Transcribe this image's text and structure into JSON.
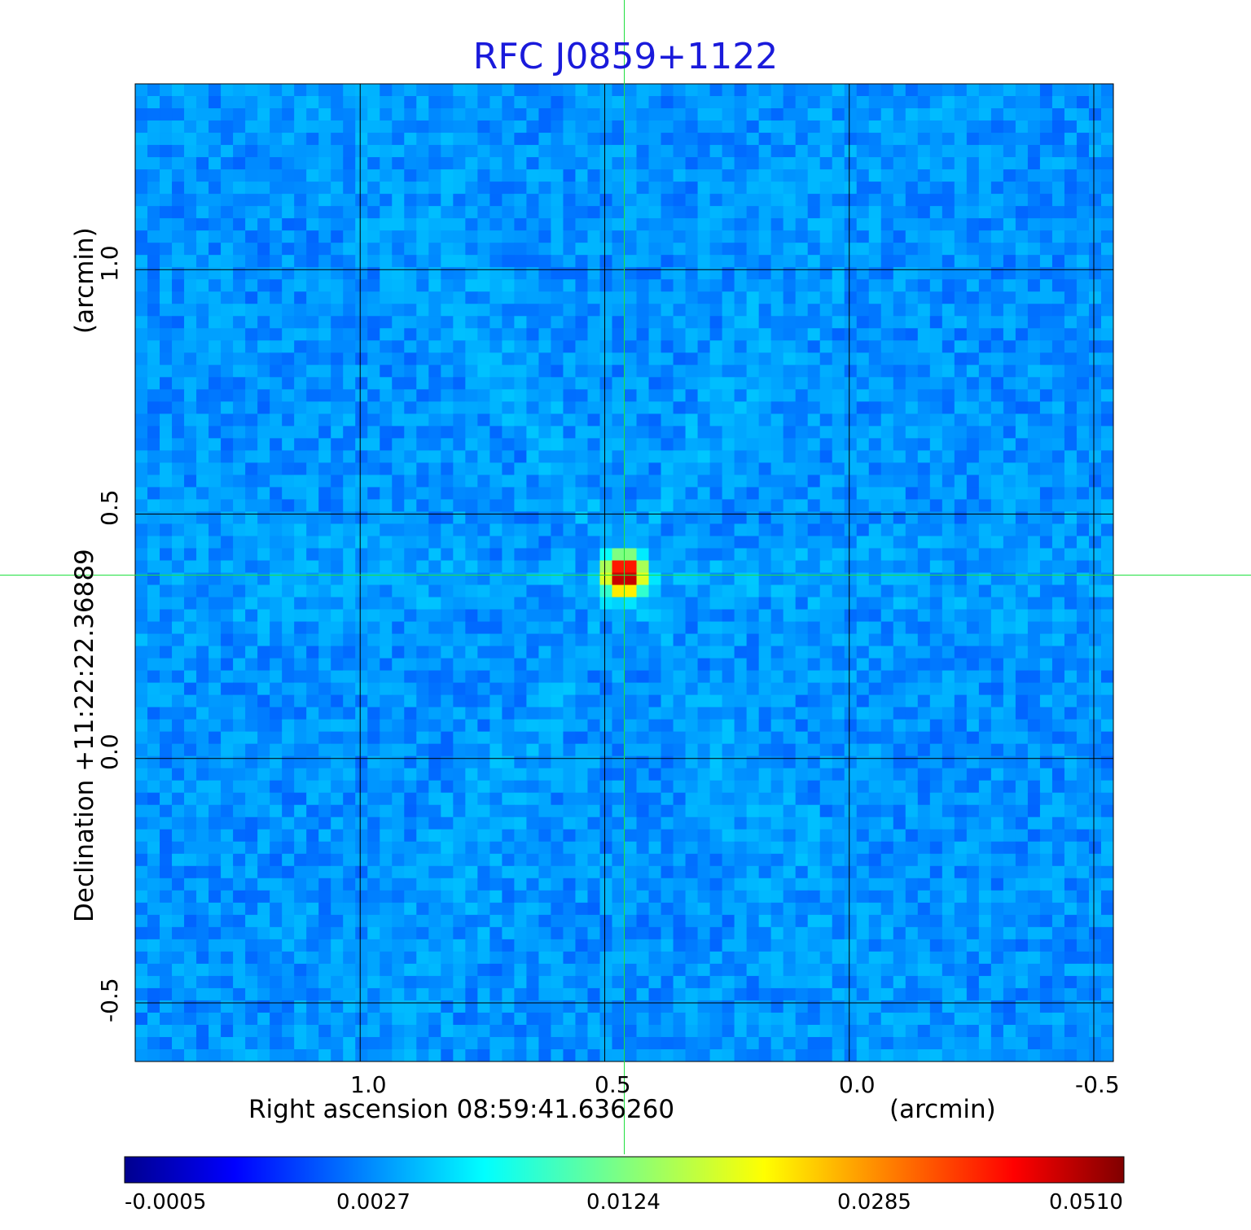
{
  "chart_data": {
    "type": "heatmap",
    "title": "RFC J0859+1122",
    "xlabel": "Right ascension  08:59:41.636260",
    "xunit": "(arcmin)",
    "ylabel": "Declination  +11:22:22.36889",
    "yunit": "(arcmin)",
    "xticks": [
      "1.0",
      "0.5",
      "0.0",
      "-0.5"
    ],
    "yticks": [
      "1.0",
      "0.5",
      "0.0",
      "-0.5"
    ],
    "xlim": [
      1.46,
      -0.54
    ],
    "ylim": [
      -0.62,
      1.38
    ],
    "grid": true,
    "crosshair": {
      "x": 0.46,
      "y": 0.375
    },
    "source_peak": {
      "x": 0.46,
      "y": 0.375,
      "value": 0.051
    },
    "colorbar": {
      "colormap": "jet",
      "ticks": [
        "-0.0005",
        "0.0027",
        "0.0124",
        "0.0285",
        "0.0510"
      ],
      "min": -0.0005,
      "max": 0.051,
      "placement": "bottom"
    }
  }
}
